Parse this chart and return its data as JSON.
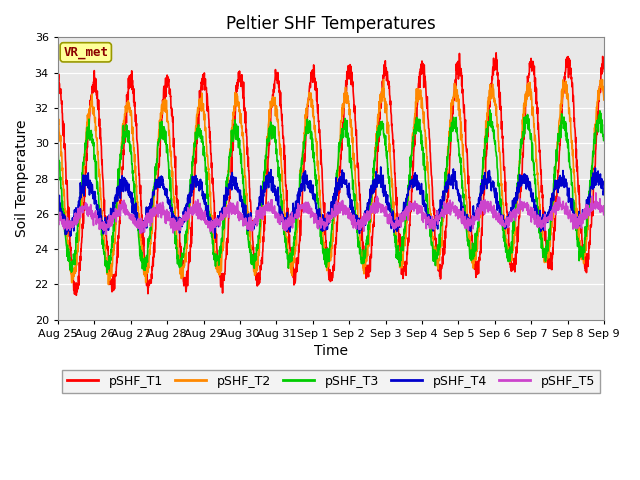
{
  "title": "Peltier SHF Temperatures",
  "ylabel": "Soil Temperature",
  "xlabel": "Time",
  "ylim": [
    20,
    36
  ],
  "annotation": "VR_met",
  "fig_facecolor": "#ffffff",
  "axes_facecolor": "#e8e8e8",
  "legend_entries": [
    "pSHF_T1",
    "pSHF_T2",
    "pSHF_T3",
    "pSHF_T4",
    "pSHF_T5"
  ],
  "line_colors": [
    "#ff0000",
    "#ff8800",
    "#00cc00",
    "#0000cc",
    "#cc44cc"
  ],
  "xtick_labels": [
    "Aug 25",
    "Aug 26",
    "Aug 27",
    "Aug 28",
    "Aug 29",
    "Aug 30",
    "Aug 31",
    "Sep 1",
    "Sep 2",
    "Sep 3",
    "Sep 4",
    "Sep 5",
    "Sep 6",
    "Sep 7",
    "Sep 8",
    "Sep 9"
  ],
  "n_days": 15,
  "pts_per_day": 144,
  "t1_base": 27.5,
  "t1_amp": 5.8,
  "t1_phase": 1.5707963,
  "t2_base": 27.3,
  "t2_amp": 4.8,
  "t2_phase": 2.1,
  "t3_base": 26.8,
  "t3_amp": 3.8,
  "t3_phase": 2.4,
  "t4_base": 26.5,
  "t4_amp": 1.3,
  "t4_phase": 2.8,
  "t5_base": 25.8,
  "t5_amp": 0.5,
  "t5_phase": 3.0,
  "title_fontsize": 12,
  "label_fontsize": 10,
  "tick_fontsize": 8,
  "legend_fontsize": 9,
  "linewidth": 1.2
}
